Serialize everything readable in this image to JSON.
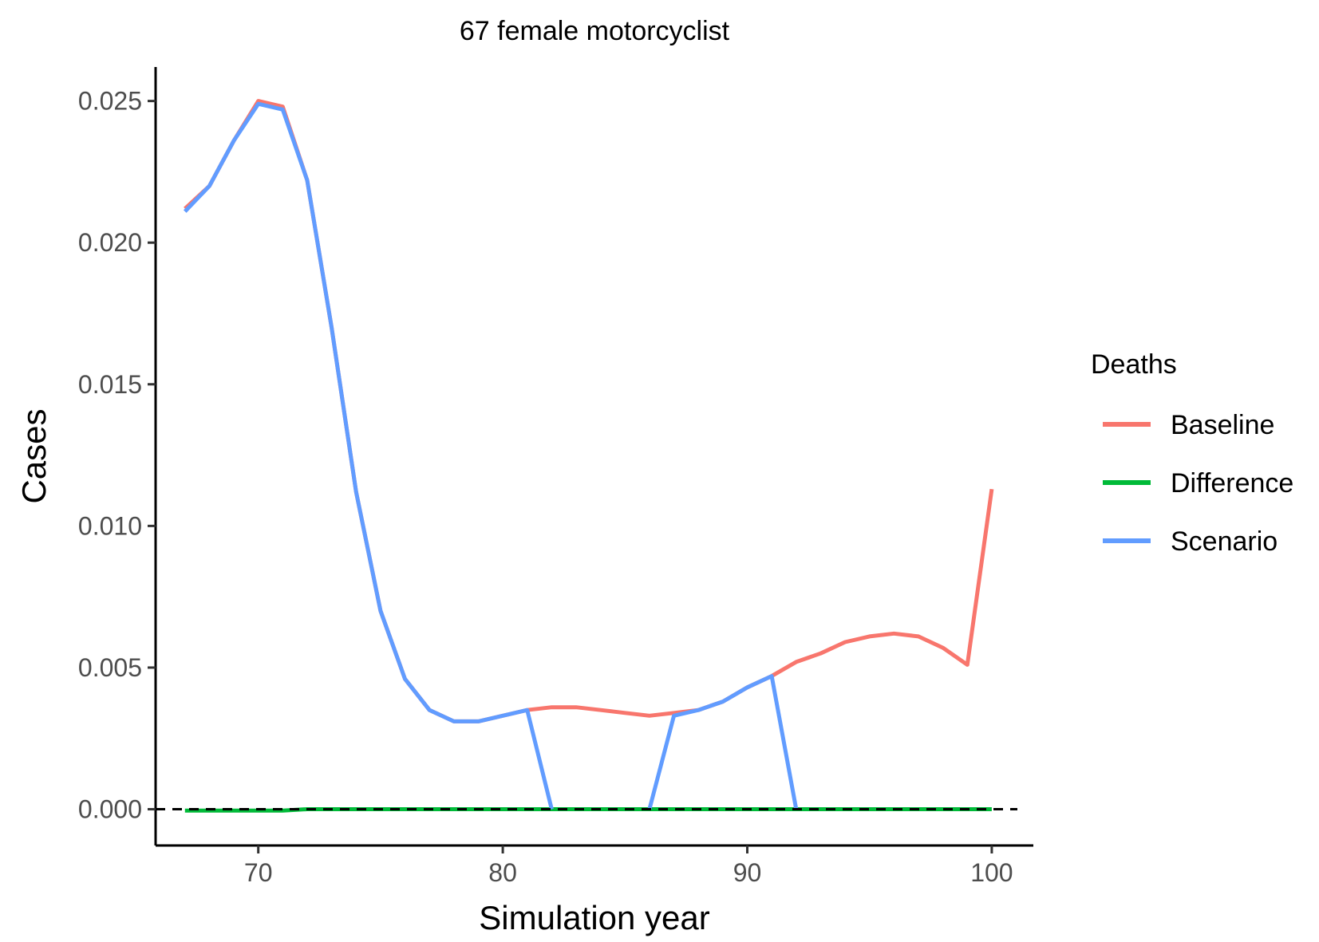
{
  "chart_data": {
    "type": "line",
    "title": "67 female motorcyclist",
    "xlabel": "Simulation year",
    "ylabel": "Cases",
    "xlim": [
      65.8,
      101.7
    ],
    "ylim": [
      -0.00128,
      0.0262
    ],
    "x_ticks": [
      70,
      80,
      90,
      100
    ],
    "x_tick_labels": [
      "70",
      "80",
      "90",
      "100"
    ],
    "y_ticks": [
      0,
      0.005,
      0.01,
      0.015,
      0.02,
      0.025
    ],
    "y_tick_labels": [
      "0.000",
      "0.005",
      "0.010",
      "0.015",
      "0.020",
      "0.025"
    ],
    "grid": false,
    "reference_line": {
      "y": 0,
      "style": "dashed",
      "color": "#000000"
    },
    "legend": {
      "title": "Deaths",
      "position": "right"
    },
    "x": [
      67,
      68,
      69,
      70,
      71,
      72,
      73,
      74,
      75,
      76,
      77,
      78,
      79,
      80,
      81,
      82,
      83,
      84,
      85,
      86,
      87,
      88,
      89,
      90,
      91,
      92,
      93,
      94,
      95,
      96,
      97,
      98,
      99,
      100
    ],
    "series": [
      {
        "name": "Baseline",
        "color": "#F8766D",
        "values": [
          0.0212,
          0.022,
          0.0236,
          0.025,
          0.0248,
          0.0222,
          0.017,
          0.0112,
          0.007,
          0.0046,
          0.0035,
          0.0031,
          0.0031,
          0.0033,
          0.0035,
          0.0036,
          0.0036,
          0.0035,
          0.0034,
          0.0033,
          0.0034,
          0.0035,
          0.0038,
          0.0043,
          0.0047,
          0.0052,
          0.0055,
          0.0059,
          0.0061,
          0.0062,
          0.0061,
          0.0057,
          0.0051,
          0.0113
        ]
      },
      {
        "name": "Difference",
        "color": "#00BA38",
        "values": [
          -5e-05,
          -5e-05,
          -5e-05,
          -5e-05,
          -5e-05,
          0,
          0,
          0,
          0,
          0,
          0,
          0,
          0,
          0,
          0,
          0,
          0,
          0,
          0,
          0,
          0,
          0,
          0,
          0,
          0,
          0,
          0,
          0,
          0,
          0,
          0,
          0,
          0,
          0
        ]
      },
      {
        "name": "Scenario",
        "color": "#619CFF",
        "values": [
          0.0211,
          0.022,
          0.0236,
          0.0249,
          0.0247,
          0.0222,
          0.017,
          0.0112,
          0.007,
          0.0046,
          0.0035,
          0.0031,
          0.0031,
          0.0033,
          0.0035,
          0,
          null,
          null,
          null,
          0,
          0.0033,
          0.0035,
          0.0038,
          0.0043,
          0.0047,
          0,
          null,
          null,
          null,
          null,
          null,
          null,
          null,
          null
        ]
      }
    ]
  }
}
